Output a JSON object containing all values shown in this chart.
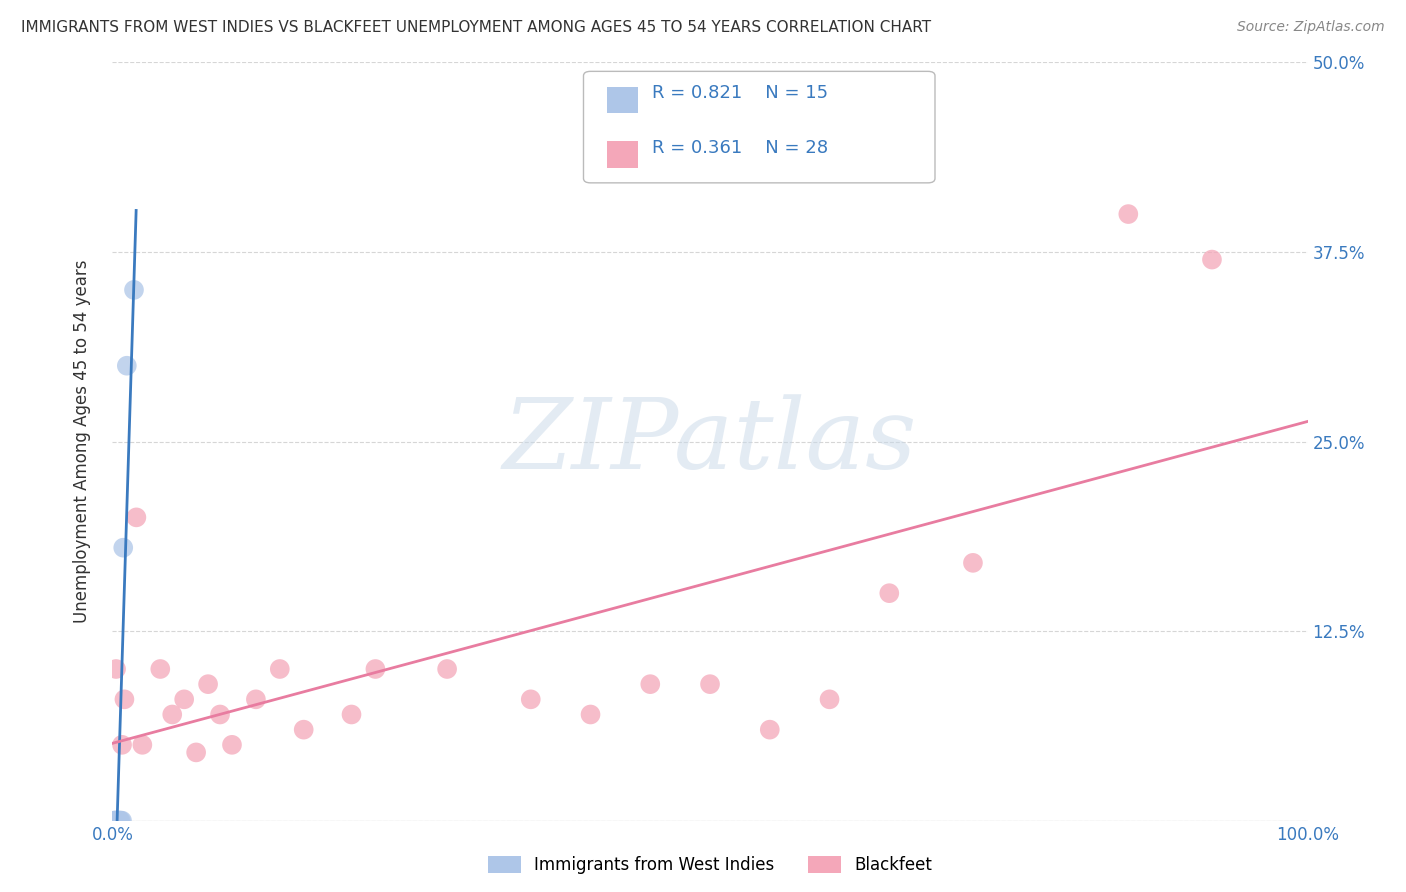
{
  "title": "IMMIGRANTS FROM WEST INDIES VS BLACKFEET UNEMPLOYMENT AMONG AGES 45 TO 54 YEARS CORRELATION CHART",
  "source": "Source: ZipAtlas.com",
  "ylabel": "Unemployment Among Ages 45 to 54 years",
  "xlim": [
    0.0,
    1.0
  ],
  "ylim": [
    0.0,
    0.5
  ],
  "xticks": [
    0.0,
    1.0
  ],
  "xticklabels": [
    "0.0%",
    "100.0%"
  ],
  "yticks": [
    0.0,
    0.125,
    0.25,
    0.375,
    0.5
  ],
  "yticklabels": [
    "",
    "12.5%",
    "25.0%",
    "37.5%",
    "50.0%"
  ],
  "legend1_label": "Immigrants from West Indies",
  "legend2_label": "Blackfeet",
  "series1_color": "#aec6e8",
  "series2_color": "#f4a7b9",
  "line1_color": "#3a7abf",
  "line2_color": "#e87ca0",
  "R1": 0.821,
  "N1": 15,
  "R2": 0.361,
  "N2": 28,
  "west_indies_x": [
    0.001,
    0.002,
    0.002,
    0.003,
    0.003,
    0.004,
    0.005,
    0.005,
    0.006,
    0.006,
    0.007,
    0.008,
    0.009,
    0.012,
    0.018
  ],
  "west_indies_y": [
    0.0,
    0.0,
    0.0,
    0.0,
    0.0,
    0.0,
    0.0,
    0.0,
    0.0,
    0.0,
    0.0,
    0.0,
    0.18,
    0.3,
    0.35
  ],
  "blackfeet_x": [
    0.003,
    0.008,
    0.01,
    0.02,
    0.025,
    0.04,
    0.05,
    0.06,
    0.07,
    0.08,
    0.09,
    0.1,
    0.12,
    0.14,
    0.16,
    0.2,
    0.22,
    0.28,
    0.35,
    0.4,
    0.45,
    0.5,
    0.55,
    0.6,
    0.65,
    0.72,
    0.85,
    0.92
  ],
  "blackfeet_y": [
    0.1,
    0.05,
    0.08,
    0.2,
    0.05,
    0.1,
    0.07,
    0.08,
    0.045,
    0.09,
    0.07,
    0.05,
    0.08,
    0.1,
    0.06,
    0.07,
    0.1,
    0.1,
    0.08,
    0.07,
    0.09,
    0.09,
    0.06,
    0.08,
    0.15,
    0.17,
    0.4,
    0.37
  ],
  "watermark_text": "ZIPatlas",
  "background_color": "#ffffff",
  "grid_color": "#cccccc",
  "title_color": "#333333",
  "axis_label_color": "#333333",
  "tick_color": "#3a7abf"
}
